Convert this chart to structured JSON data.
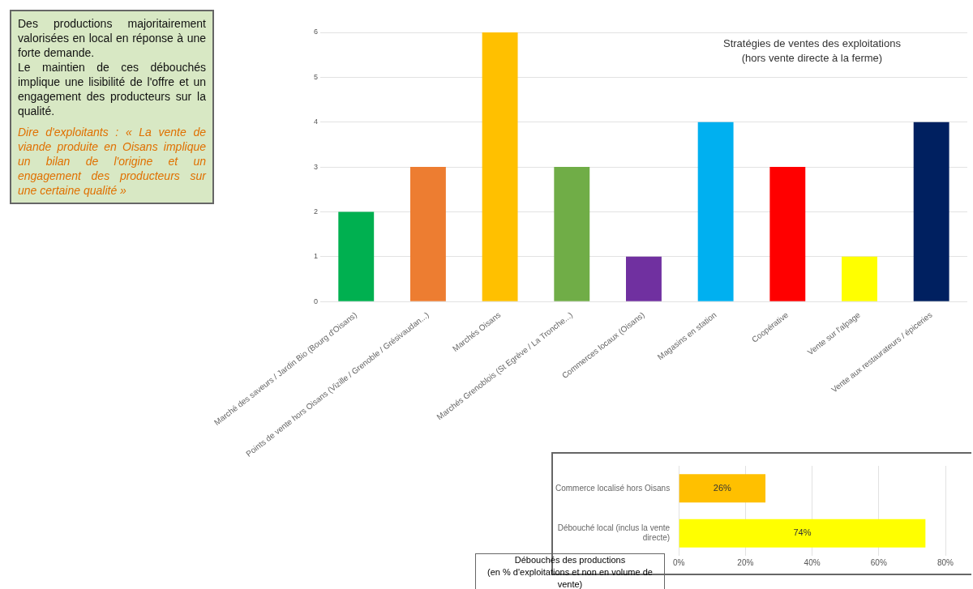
{
  "chart_data": [
    {
      "type": "bar",
      "title": "Stratégies de ventes des exploitations",
      "subtitle": "(hors vente directe à la ferme)",
      "categories": [
        "Marché des saveurs / Jardin Bio (Bourg d'Oisans)",
        "Points de vente hors Oisans (Vizille / Grenoble / Grésivaudan...)",
        "Marchés Oisans",
        "Marchés Grenoblois (St Egrève / La Tronche...)",
        "Commerces locaux (Oisans)",
        "Magasins en station",
        "Coopérative",
        "Vente sur l'alpage",
        "Vente aux restaurateurs / épiceries"
      ],
      "values": [
        2,
        3,
        6,
        3,
        1,
        4,
        3,
        1,
        4
      ],
      "colors": [
        "#00b050",
        "#ed7d31",
        "#ffc000",
        "#70ad47",
        "#7030a0",
        "#00b0f0",
        "#ff0000",
        "#ffff00",
        "#002060"
      ],
      "ylim": [
        0,
        6
      ],
      "yticks": [
        0,
        1,
        2,
        3,
        4,
        5,
        6
      ],
      "grid": "y",
      "legend": false,
      "annotations": [
        "Des productions majoritairement valorisées en local en réponse à une forte demande.",
        "Le maintien de ces débouchés implique une lisibilité de l'offre et un engagement des producteurs sur la qualité.",
        "Dire d'exploitants : « La vente de viande produite en Oisans implique un bilan de l'origine et un engagement des producteurs sur une certaine qualité »"
      ]
    },
    {
      "type": "bar",
      "orientation": "horizontal",
      "title": "Débouchés des productions",
      "subtitle": "(en % d'exploitations et non en volume de vente)",
      "categories": [
        "Commerce localisé hors Oisans",
        "Débouché local (inclus la vente directe)"
      ],
      "values": [
        26,
        74
      ],
      "colors": [
        "#ffc000",
        "#ffff00"
      ],
      "value_labels": [
        "26%",
        "74%"
      ],
      "xlim": [
        0,
        80
      ],
      "xticks": [
        {
          "value": 0,
          "label": "0%"
        },
        {
          "value": 20,
          "label": "20%"
        },
        {
          "value": 40,
          "label": "40%"
        },
        {
          "value": 60,
          "label": "60%"
        },
        {
          "value": 80,
          "label": "80%"
        }
      ],
      "grid": "x",
      "legend": false
    }
  ]
}
